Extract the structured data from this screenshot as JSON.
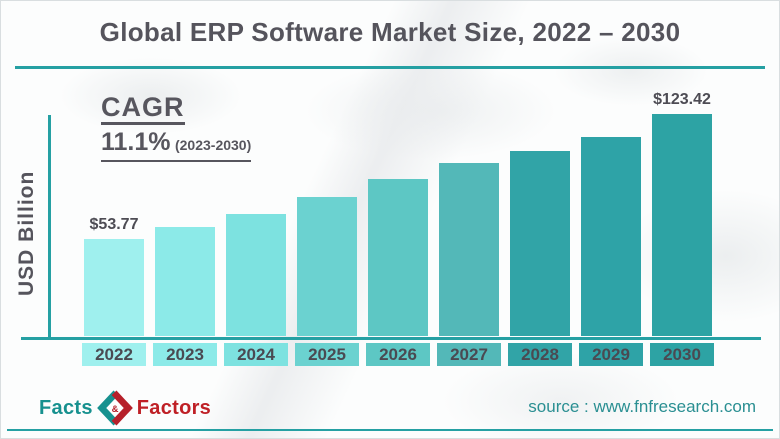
{
  "title": "Global ERP Software Market Size, 2022 – 2030",
  "cagr": {
    "label": "CAGR",
    "value": "11.1%",
    "period": "(2023-2030)"
  },
  "chart_data": {
    "type": "bar",
    "title": "Global ERP Software Market Size, 2022 – 2030",
    "xlabel": "",
    "ylabel": "USD Billion",
    "categories": [
      "2022",
      "2023",
      "2024",
      "2025",
      "2026",
      "2027",
      "2028",
      "2029",
      "2030"
    ],
    "values": [
      53.77,
      60.4,
      67.6,
      77.0,
      87.0,
      96.0,
      102.6,
      110.3,
      123.42
    ],
    "data_labels": [
      "$53.77",
      "",
      "",
      "",
      "",
      "",
      "",
      "",
      "$123.42"
    ],
    "bar_colors": [
      "#9ff0ee",
      "#8ceae8",
      "#7de2e0",
      "#6bd2d0",
      "#5dc7c4",
      "#53b8b8",
      "#31a4a7",
      "#2ea3a7",
      "#2da3a4"
    ],
    "ylim": [
      0,
      130
    ],
    "grid": false,
    "legend": false,
    "annotation": "CAGR 11.1% (2023-2030)"
  },
  "colors": {
    "axis": "#25a0a3",
    "title_text": "#55545c",
    "tick_text": "#4a4a52"
  },
  "footer": {
    "logo_facts": "Facts",
    "logo_ampersand": "&",
    "logo_factors": "Factors",
    "source_text": "source : www.fnfresearch.com"
  }
}
